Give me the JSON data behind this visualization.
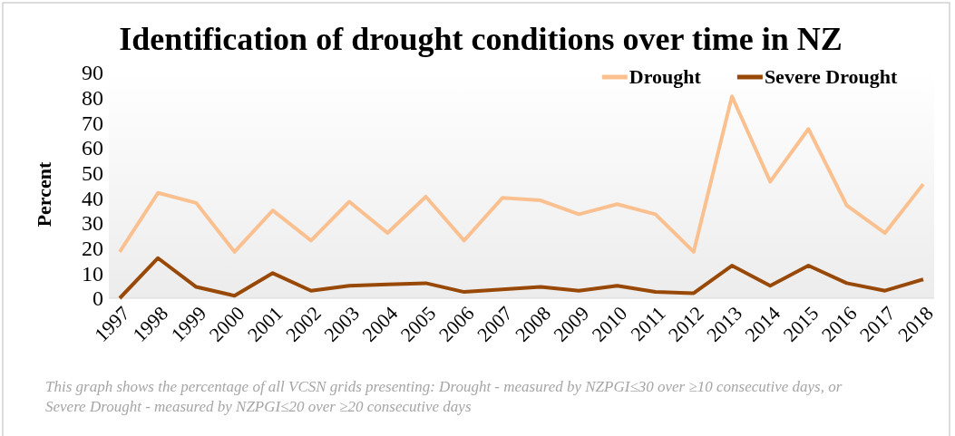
{
  "chart_data": {
    "type": "line",
    "title": "Identification of drought conditions over time in NZ",
    "ylabel": "Percent",
    "categories": [
      "1997",
      "1998",
      "1999",
      "2000",
      "2001",
      "2002",
      "2003",
      "2004",
      "2005",
      "2006",
      "2007",
      "2008",
      "2009",
      "2010",
      "2011",
      "2012",
      "2013",
      "2014",
      "2015",
      "2016",
      "2017",
      "2018"
    ],
    "series": [
      {
        "name": "Drought",
        "color": "#fac090",
        "values": [
          18.5,
          42,
          38,
          18.5,
          35,
          23,
          38.5,
          26,
          40.5,
          23,
          40,
          39,
          33.5,
          37.5,
          33.5,
          18.5,
          80.5,
          46.5,
          67.5,
          37,
          26,
          45.5
        ]
      },
      {
        "name": "Severe Drought",
        "color": "#984807",
        "values": [
          0,
          16,
          4.5,
          1,
          10,
          3,
          5,
          5.5,
          6,
          2.5,
          3.5,
          4.5,
          3,
          5,
          2.5,
          2,
          13,
          5,
          13,
          6,
          3,
          7.5
        ]
      }
    ],
    "ylim": [
      0,
      90
    ],
    "yticks": [
      0,
      10,
      20,
      30,
      40,
      50,
      60,
      70,
      80,
      90
    ],
    "grid": false,
    "legend": "top right",
    "marker": "none",
    "line_style": "solid",
    "annotations": [
      "This graph shows the percentage of all VCSN grids presenting: Drought  - measured by NZPGI≤30 over ≥10 consecutive days, or",
      "Severe Drought - measured by NZPGI≤20 over ≥20 consecutive days"
    ]
  }
}
